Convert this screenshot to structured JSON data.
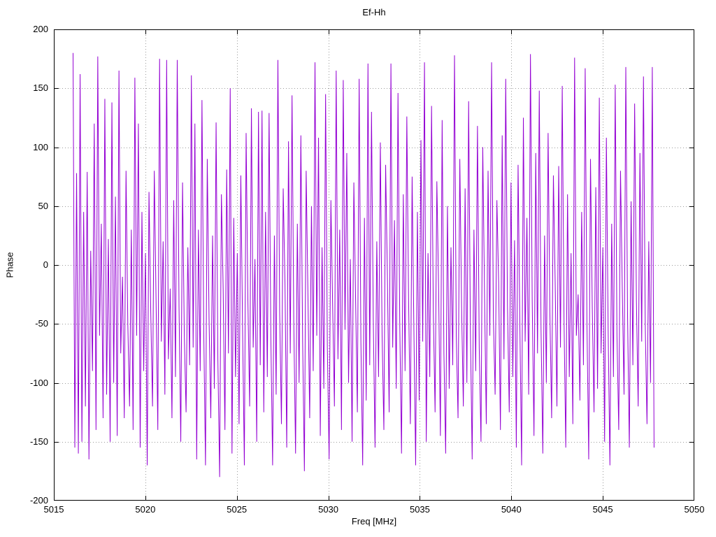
{
  "page": {
    "background": "#ffffff"
  },
  "chart_data": {
    "type": "line",
    "title": "Ef-Hh",
    "xlabel": "Freq [MHz]",
    "ylabel": "Phase",
    "xlim": [
      5015,
      5050
    ],
    "ylim": [
      -200,
      200
    ],
    "xticks": [
      5015,
      5020,
      5025,
      5030,
      5035,
      5040,
      5045,
      5050
    ],
    "yticks": [
      -200,
      -150,
      -100,
      -50,
      0,
      50,
      100,
      150,
      200
    ],
    "grid": true,
    "grid_style": "dotted",
    "legend": "none",
    "line_color": "#9400d3",
    "grid_color": "#9a9a9a",
    "border_color": "#000000",
    "x_start": 5016.05,
    "x_end": 5047.8,
    "values": [
      180,
      -155,
      78,
      -160,
      162,
      -150,
      45,
      -120,
      79,
      -165,
      12,
      -90,
      120,
      -140,
      177,
      -60,
      35,
      -130,
      141,
      -110,
      22,
      -150,
      138,
      -100,
      58,
      -145,
      165,
      -75,
      -10,
      -130,
      80,
      -50,
      -120,
      30,
      -140,
      159,
      -60,
      120,
      -155,
      45,
      -90,
      10,
      -170,
      62,
      -40,
      -120,
      80,
      -30,
      -140,
      175,
      -65,
      20,
      -110,
      174,
      -80,
      -20,
      -130,
      55,
      -95,
      174,
      -35,
      -150,
      70,
      -60,
      -125,
      15,
      -85,
      161,
      -70,
      120,
      -165,
      30,
      -90,
      140,
      -55,
      -170,
      90,
      -45,
      -130,
      25,
      -105,
      121,
      -80,
      -180,
      60,
      -20,
      -140,
      81,
      -75,
      150,
      -160,
      40,
      -95,
      10,
      -135,
      76,
      -55,
      -170,
      112,
      -30,
      -120,
      133,
      -70,
      5,
      -150,
      130,
      -85,
      131,
      -125,
      45,
      -95,
      129,
      -60,
      -170,
      25,
      -110,
      174,
      -40,
      -135,
      65,
      -15,
      -155,
      105,
      -75,
      144,
      -50,
      -160,
      35,
      -100,
      110,
      -65,
      -175,
      80,
      -25,
      -130,
      50,
      -90,
      172,
      -60,
      108,
      -145,
      15,
      -105,
      145,
      -70,
      -165,
      55,
      -35,
      -120,
      165,
      -80,
      30,
      -140,
      157,
      -55,
      95,
      -100,
      5,
      -150,
      70,
      -30,
      -125,
      158,
      -65,
      -170,
      40,
      -115,
      171,
      -85,
      130,
      -45,
      -155,
      20,
      -95,
      104,
      -60,
      -140,
      85,
      -10,
      -125,
      171,
      -70,
      38,
      -105,
      146,
      -50,
      -160,
      60,
      -90,
      126,
      -30,
      -135,
      75,
      -55,
      -170,
      45,
      -115,
      106,
      -65,
      172,
      -150,
      10,
      -95,
      135,
      -40,
      -125,
      71,
      -20,
      -145,
      123,
      -75,
      -160,
      50,
      -105,
      15,
      -85,
      178,
      -60,
      -130,
      90,
      -35,
      -120,
      65,
      -100,
      139,
      -55,
      -165,
      30,
      -90,
      118,
      -70,
      -150,
      100,
      -25,
      -135,
      80,
      -60,
      172,
      -45,
      -110,
      55,
      -15,
      -140,
      110,
      -80,
      158,
      -35,
      -125,
      70,
      -95,
      21,
      -155,
      85,
      -50,
      -170,
      125,
      -65,
      40,
      -110,
      179,
      -30,
      -145,
      95,
      -75,
      148,
      -55,
      -160,
      25,
      -100,
      112,
      -40,
      -130,
      76,
      -15,
      -120,
      84,
      -70,
      152,
      -45,
      -155,
      60,
      -95,
      10,
      -135,
      176,
      -60,
      -25,
      -115,
      45,
      -85,
      167,
      -50,
      -165,
      90,
      -35,
      -125,
      66,
      -105,
      142,
      -75,
      15,
      -150,
      108,
      -55,
      -170,
      35,
      -95,
      153,
      -60,
      -140,
      80,
      -20,
      -110,
      168,
      -45,
      -155,
      54,
      -85,
      137,
      -30,
      -120,
      95,
      -65,
      160,
      -50,
      -135,
      20,
      -100,
      168,
      -155
    ]
  }
}
